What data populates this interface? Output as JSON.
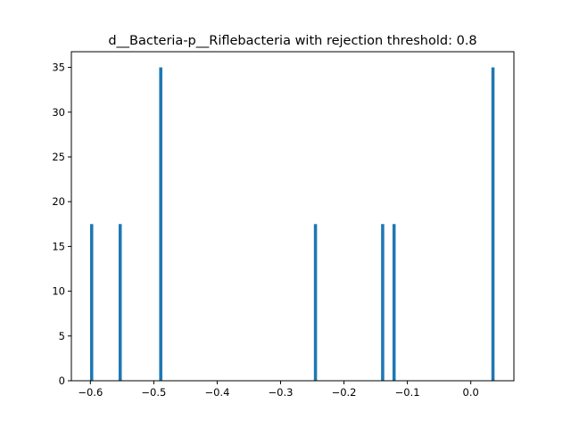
{
  "chart_data": {
    "type": "bar",
    "title": "d__Bacteria-p__Riflebacteria with rejection threshold: 0.8",
    "xlabel": "",
    "ylabel": "",
    "xlim": [
      -0.63,
      0.068
    ],
    "ylim": [
      0,
      36.75
    ],
    "bar_width": 0.005,
    "bar_color": "#1f77b4",
    "grid": false,
    "legend": "none",
    "x_ticks": [
      -0.6,
      -0.5,
      -0.4,
      -0.3,
      -0.2,
      -0.1,
      0.0
    ],
    "x_tick_labels": [
      "−0.6",
      "−0.5",
      "−0.4",
      "−0.3",
      "−0.2",
      "−0.1",
      "0.0"
    ],
    "y_ticks": [
      0,
      5,
      10,
      15,
      20,
      25,
      30,
      35
    ],
    "y_tick_labels": [
      "0",
      "5",
      "10",
      "15",
      "20",
      "25",
      "30",
      "35"
    ],
    "bars": [
      {
        "x": -0.598,
        "value": 17.5
      },
      {
        "x": -0.553,
        "value": 17.5
      },
      {
        "x": -0.489,
        "value": 35
      },
      {
        "x": -0.245,
        "value": 17.5
      },
      {
        "x": -0.139,
        "value": 17.5
      },
      {
        "x": -0.121,
        "value": 17.5
      },
      {
        "x": 0.035,
        "value": 35
      }
    ]
  }
}
